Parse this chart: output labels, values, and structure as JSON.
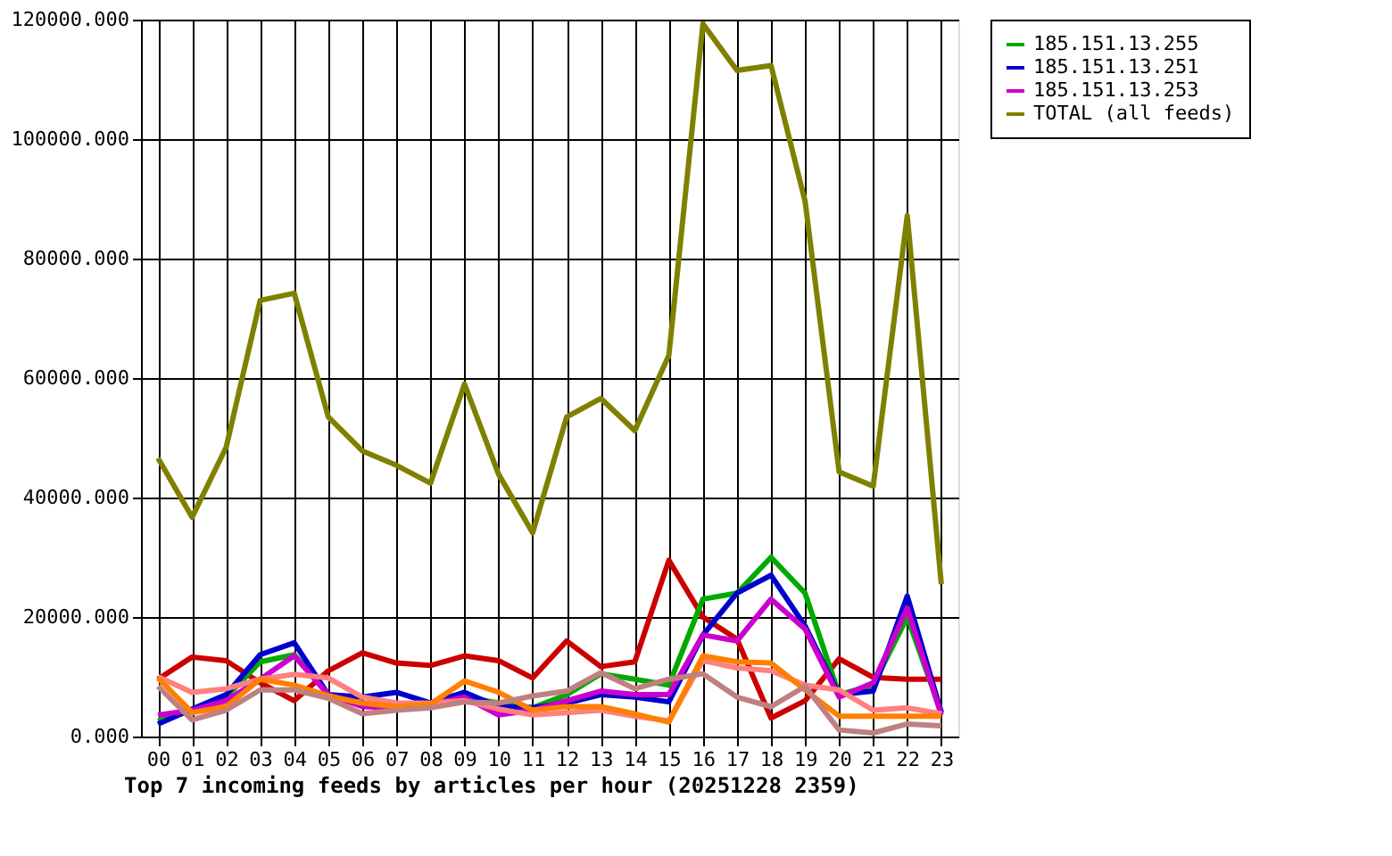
{
  "chart_data": {
    "type": "line",
    "xlabel": "Top 7 incoming feeds by articles per hour (20251228 2359)",
    "categories": [
      "00",
      "01",
      "02",
      "03",
      "04",
      "05",
      "06",
      "07",
      "08",
      "09",
      "10",
      "11",
      "12",
      "13",
      "14",
      "15",
      "16",
      "17",
      "18",
      "19",
      "20",
      "21",
      "22",
      "23"
    ],
    "ylim": [
      0,
      120000
    ],
    "yticks": [
      {
        "value": 0,
        "label": "0.000"
      },
      {
        "value": 20000,
        "label": "20000.000"
      },
      {
        "value": 40000,
        "label": "40000.000"
      },
      {
        "value": 60000,
        "label": "60000.000"
      },
      {
        "value": 80000,
        "label": "80000.000"
      },
      {
        "value": 100000,
        "label": "100000.000"
      },
      {
        "value": 120000,
        "label": "120000.000"
      }
    ],
    "grid": true,
    "legend": "right",
    "marker": "none",
    "line_style": "solid",
    "series": [
      {
        "color": "#cc0000",
        "values": [
          9600,
          13300,
          12700,
          9000,
          6000,
          11000,
          14000,
          12300,
          11900,
          13500,
          12700,
          9800,
          16000,
          11700,
          12500,
          29500,
          20000,
          16300,
          3100,
          6000,
          13000,
          9900,
          9600,
          9600
        ]
      },
      {
        "name": "185.151.13.255",
        "color": "#00aa00",
        "values": [
          2600,
          4400,
          6600,
          12500,
          13700,
          7000,
          5600,
          5000,
          5600,
          6600,
          5600,
          4800,
          7000,
          10500,
          9600,
          8600,
          23000,
          24000,
          30000,
          24000,
          7000,
          8600,
          20000,
          4000
        ]
      },
      {
        "name": "185.151.13.251",
        "color": "#0000cc",
        "values": [
          2100,
          4600,
          7000,
          13700,
          15700,
          7000,
          6600,
          7400,
          5600,
          7400,
          5000,
          4800,
          5600,
          7000,
          6600,
          5800,
          17000,
          24000,
          27000,
          18500,
          7000,
          7600,
          23500,
          4000
        ]
      },
      {
        "name": "185.151.13.253",
        "color": "#cc00cc",
        "values": [
          3600,
          4400,
          6000,
          9600,
          13500,
          7000,
          5000,
          4800,
          5400,
          6600,
          3600,
          4400,
          6000,
          7600,
          7000,
          7000,
          17000,
          16000,
          23000,
          18000,
          6600,
          9000,
          21500,
          3600
        ]
      },
      {
        "color": "#ff8080",
        "values": [
          10000,
          7400,
          8000,
          9600,
          10400,
          9800,
          6600,
          5600,
          5600,
          6000,
          4600,
          3600,
          4000,
          4400,
          3400,
          2600,
          12700,
          11500,
          11000,
          8600,
          7800,
          4400,
          4800,
          3800
        ]
      },
      {
        "color": "#ff8000",
        "values": [
          9800,
          4000,
          5000,
          9600,
          8600,
          6800,
          5600,
          5000,
          5400,
          9300,
          7400,
          4400,
          5000,
          5000,
          3800,
          2400,
          13500,
          12500,
          12300,
          7800,
          3400,
          3400,
          3400,
          3400
        ]
      },
      {
        "color": "#c08080",
        "values": [
          8400,
          2800,
          4400,
          7800,
          7800,
          6400,
          3800,
          4400,
          4800,
          5800,
          5600,
          6800,
          7600,
          10700,
          8000,
          9600,
          10500,
          6600,
          5000,
          8400,
          1100,
          600,
          2100,
          1800
        ]
      },
      {
        "name": "TOTAL (all feeds)",
        "color": "#808000",
        "values": [
          46600,
          36700,
          48400,
          73000,
          74200,
          53500,
          47800,
          45400,
          42400,
          59000,
          43900,
          34100,
          53500,
          56600,
          51200,
          63800,
          119300,
          111500,
          112300,
          89600,
          44300,
          41900,
          87200,
          25500
        ]
      }
    ]
  }
}
